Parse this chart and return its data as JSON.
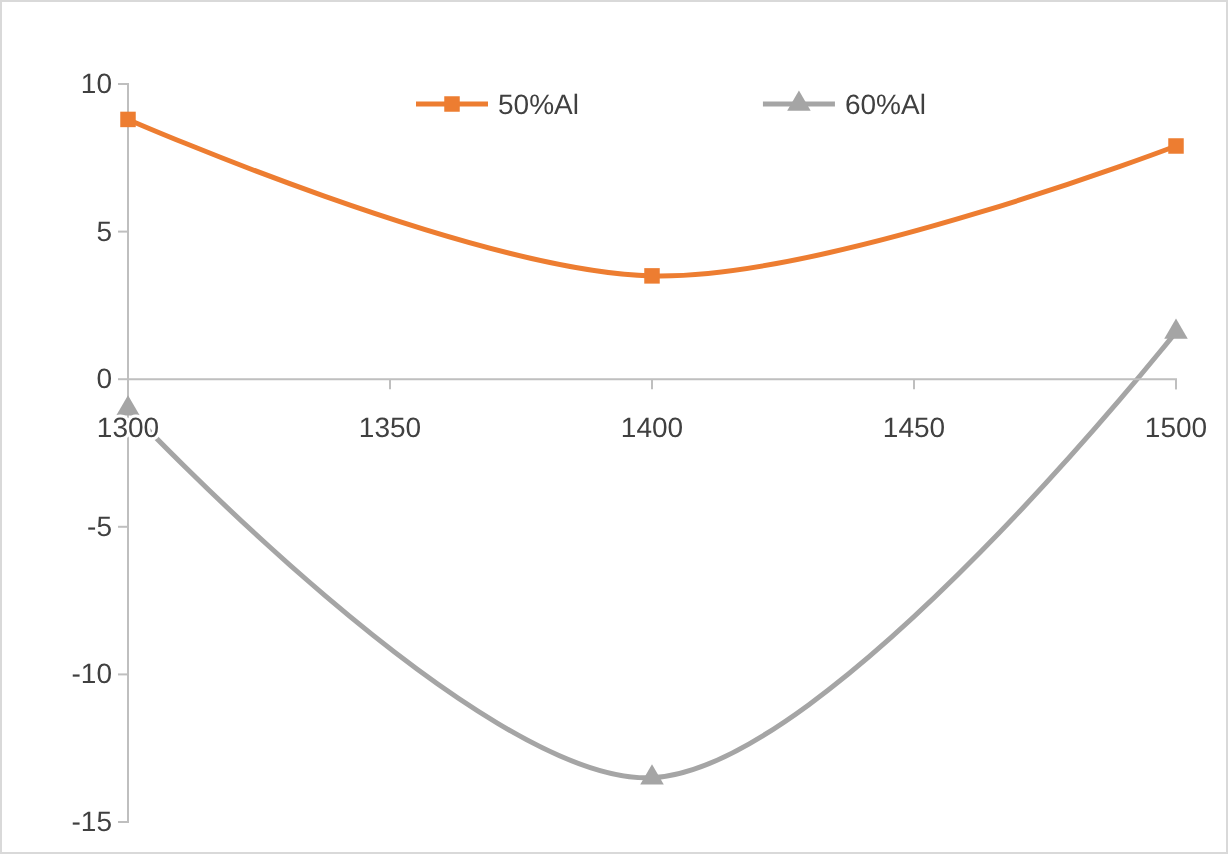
{
  "chart_data": {
    "type": "line",
    "x": [
      1300,
      1400,
      1500
    ],
    "series": [
      {
        "name": "50%Al",
        "color": "#ed7d31",
        "marker": "square",
        "values": [
          8.8,
          3.5,
          7.9
        ]
      },
      {
        "name": "60%Al",
        "color": "#a5a5a5",
        "marker": "triangle",
        "values": [
          -1.0,
          -13.5,
          1.6
        ]
      }
    ],
    "xlim": [
      1300,
      1500
    ],
    "xticks": [
      1300,
      1350,
      1400,
      1450,
      1500
    ],
    "ylim": [
      -15,
      10
    ],
    "yticks": [
      -15,
      -10,
      -5,
      0,
      5,
      10
    ],
    "grid": false,
    "legend": "top",
    "line_style": "solid"
  }
}
